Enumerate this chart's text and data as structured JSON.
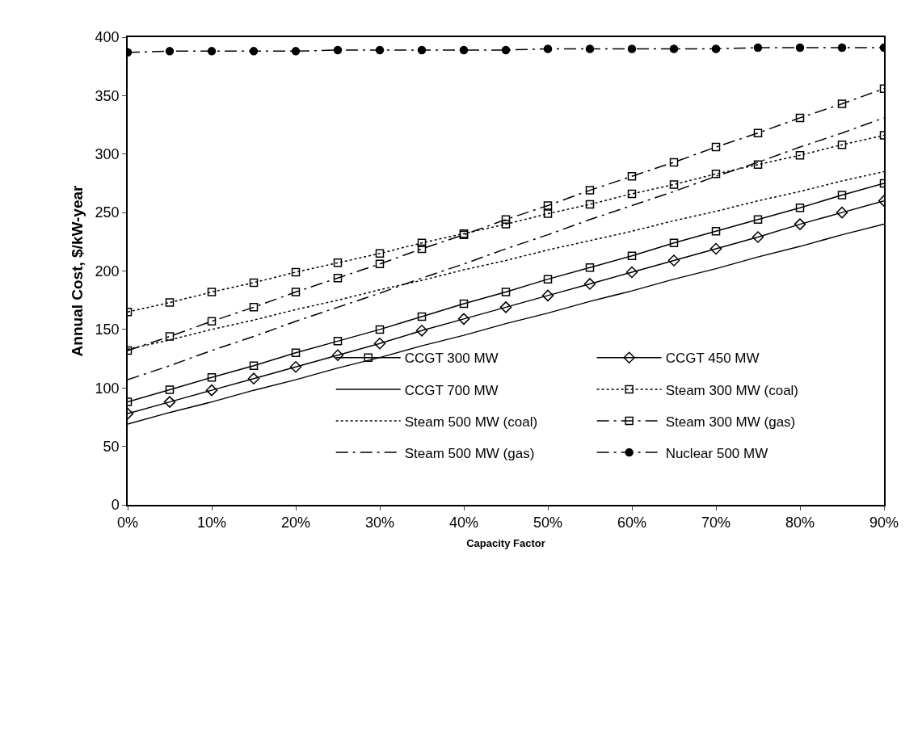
{
  "chart_data": {
    "type": "line",
    "xlabel": "Capacity Factor",
    "ylabel": "Annual Cost, $/kW-year",
    "x": [
      0,
      5,
      10,
      15,
      20,
      25,
      30,
      35,
      40,
      45,
      50,
      55,
      60,
      65,
      70,
      75,
      80,
      85,
      90
    ],
    "xlim": [
      0,
      90
    ],
    "xticks": [
      {
        "value": 0,
        "label": "0%"
      },
      {
        "value": 10,
        "label": "10%"
      },
      {
        "value": 20,
        "label": "20%"
      },
      {
        "value": 30,
        "label": "30%"
      },
      {
        "value": 40,
        "label": "40%"
      },
      {
        "value": 50,
        "label": "50%"
      },
      {
        "value": 60,
        "label": "60%"
      },
      {
        "value": 70,
        "label": "70%"
      },
      {
        "value": 80,
        "label": "80%"
      },
      {
        "value": 90,
        "label": "90%"
      }
    ],
    "ylim": [
      0,
      400
    ],
    "yticks": [
      0,
      50,
      100,
      150,
      200,
      250,
      300,
      350,
      400
    ],
    "grid": false,
    "legend": "bottom right",
    "series": [
      {
        "name": "CCGT 300 MW",
        "color": "#000000",
        "marker": "square",
        "line_style": "solid",
        "values": [
          88,
          98.5,
          109,
          119,
          130,
          140,
          150,
          161,
          172,
          182,
          193,
          203,
          213,
          224,
          234,
          244,
          254,
          265,
          275
        ]
      },
      {
        "name": "CCGT 450 MW",
        "color": "#000000",
        "marker": "diamond",
        "line_style": "solid",
        "values": [
          78,
          88,
          98,
          108,
          118,
          128,
          138,
          149,
          159,
          169,
          179,
          189,
          199,
          209,
          219,
          229,
          240,
          250,
          260
        ]
      },
      {
        "name": "CCGT 700 MW",
        "color": "#000000",
        "marker": "none",
        "line_style": "solid",
        "values": [
          69,
          79,
          88,
          98,
          107,
          117,
          126,
          136,
          145,
          155,
          164,
          174,
          183,
          193,
          202,
          212,
          221,
          231,
          240
        ]
      },
      {
        "name": "Steam 300 MW (coal)",
        "color": "#000000",
        "marker": "square",
        "line_style": "dotted",
        "values": [
          165,
          173,
          182,
          190,
          199,
          207,
          215,
          224,
          232,
          240,
          249,
          257,
          266,
          274,
          283,
          291,
          299,
          308,
          316
        ]
      },
      {
        "name": "Steam 500 MW (coal)",
        "color": "#000000",
        "marker": "none",
        "line_style": "dotted",
        "values": [
          133,
          141,
          150,
          158,
          167,
          175,
          184,
          192,
          201,
          209,
          218,
          226,
          234,
          243,
          251,
          260,
          268,
          277,
          285
        ]
      },
      {
        "name": "Steam 300 MW (gas)",
        "color": "#000000",
        "marker": "square",
        "line_style": "dashdot",
        "values": [
          132,
          144,
          157,
          169,
          182,
          194,
          206,
          219,
          231,
          244,
          256,
          269,
          281,
          293,
          306,
          318,
          331,
          343,
          356
        ]
      },
      {
        "name": "Steam 500 MW (gas)",
        "color": "#000000",
        "marker": "none",
        "line_style": "dashdot",
        "values": [
          107,
          119,
          132,
          144,
          157,
          169,
          181,
          194,
          206,
          219,
          231,
          244,
          256,
          268,
          281,
          293,
          306,
          318,
          331
        ]
      },
      {
        "name": "Nuclear 500 MW",
        "color": "#000000",
        "marker": "filled circle",
        "line_style": "dashdot",
        "values": [
          387,
          388,
          388,
          388,
          388,
          389,
          389,
          389,
          389,
          389,
          390,
          390,
          390,
          390,
          390,
          391,
          391,
          391,
          391
        ]
      }
    ]
  }
}
